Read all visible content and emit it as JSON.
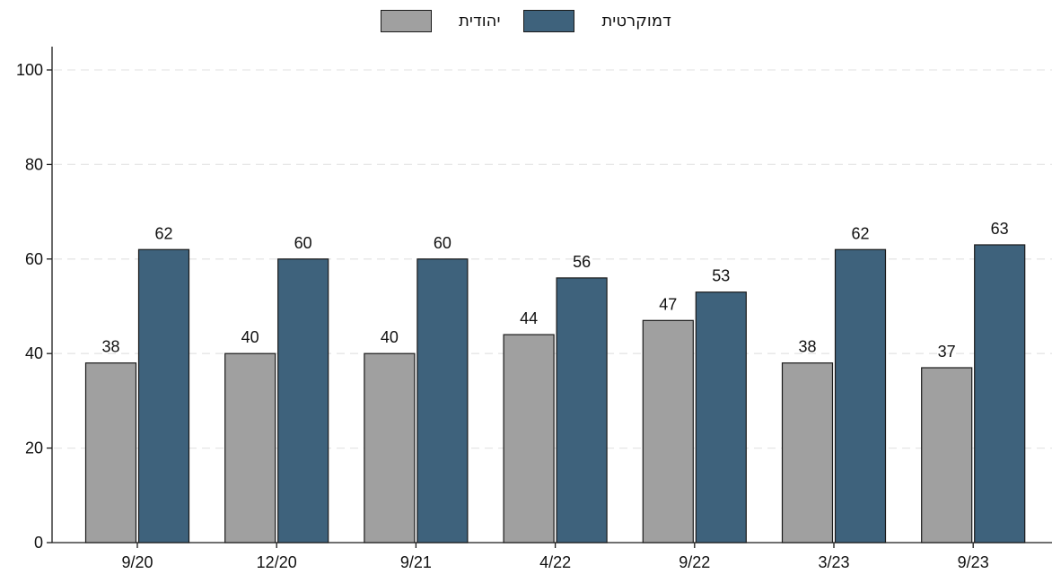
{
  "chart_data": {
    "type": "bar",
    "categories": [
      "9/20",
      "12/20",
      "9/21",
      "4/22",
      "9/22",
      "3/23",
      "9/23"
    ],
    "series": [
      {
        "name": "יהודית",
        "values": [
          38,
          40,
          40,
          44,
          47,
          38,
          37
        ],
        "color": "#a0a0a0"
      },
      {
        "name": "דמוקרטית",
        "values": [
          62,
          60,
          60,
          56,
          53,
          62,
          63
        ],
        "color": "#3e627c"
      }
    ],
    "value_labels": {
      "יהודית": [
        "38",
        "40",
        "40",
        "44",
        "47",
        "38",
        "37"
      ],
      "דמוקרטית": [
        "62",
        "60",
        "60",
        "56",
        "53",
        "62",
        "63"
      ]
    },
    "ylim": [
      0,
      100
    ],
    "yticks": [
      0,
      20,
      40,
      60,
      80,
      100
    ],
    "grid": "horizontal dashed",
    "legend_position": "top-center",
    "title": "",
    "xlabel": "",
    "ylabel": ""
  },
  "legend": {
    "series_a_label": "יהודית",
    "series_b_label": "דמוקרטית",
    "series_a_color": "#a0a0a0",
    "series_b_color": "#3e627c"
  }
}
